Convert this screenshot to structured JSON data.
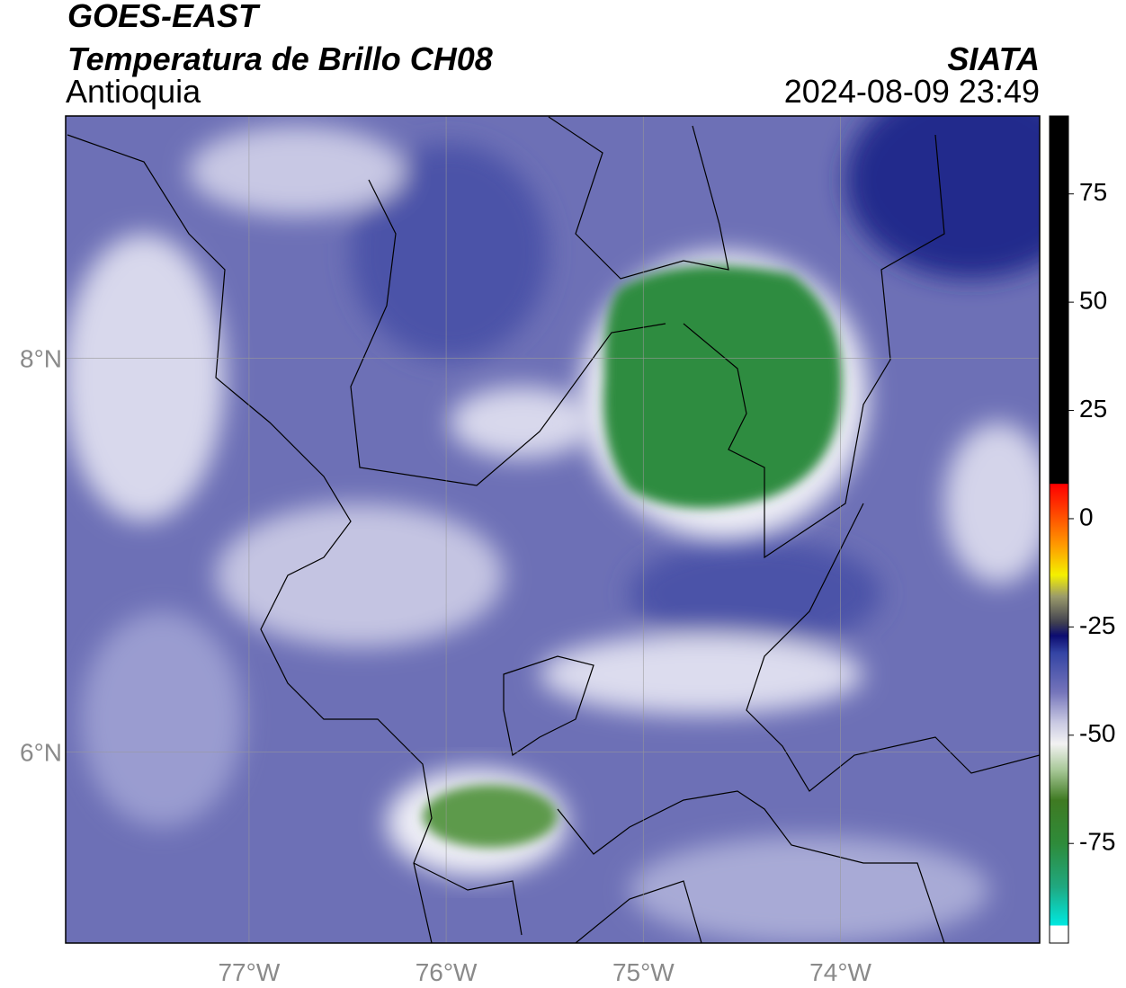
{
  "chart_data": {
    "type": "map",
    "title": "GOES-EAST",
    "subtitle": "Temperatura de Brillo CH08",
    "region": "Antioquia",
    "source": "SIATA",
    "timestamp": "2024-08-09 23:49",
    "xlim": [
      -77.93,
      -72.99
    ],
    "ylim": [
      5.03,
      9.23
    ],
    "xticks": [
      {
        "value": -77,
        "label": "77°W"
      },
      {
        "value": -76,
        "label": "76°W"
      },
      {
        "value": -75,
        "label": "75°W"
      },
      {
        "value": -74,
        "label": "74°W"
      }
    ],
    "yticks": [
      {
        "value": 6,
        "label": "6°N"
      },
      {
        "value": 8,
        "label": "8°N"
      }
    ],
    "grid": true,
    "colorbar": {
      "lim": [
        -98,
        93
      ],
      "ticks": [
        -75,
        -50,
        -25,
        0,
        25,
        50,
        75
      ],
      "stops": [
        {
          "value": -98,
          "color": "#ffffff"
        },
        {
          "value": -94,
          "color": "#ffffff"
        },
        {
          "value": -93.9,
          "color": "#00e8e0"
        },
        {
          "value": -85,
          "color": "#20a880"
        },
        {
          "value": -75,
          "color": "#2e8b3a"
        },
        {
          "value": -65,
          "color": "#3f7a22"
        },
        {
          "value": -58,
          "color": "#a8c898"
        },
        {
          "value": -52,
          "color": "#f2f2f2"
        },
        {
          "value": -47,
          "color": "#c8c8e2"
        },
        {
          "value": -40,
          "color": "#7474ba"
        },
        {
          "value": -31,
          "color": "#3444a4"
        },
        {
          "value": -27,
          "color": "#0c0c70"
        },
        {
          "value": -24,
          "color": "#404050"
        },
        {
          "value": -18,
          "color": "#9a9a6a"
        },
        {
          "value": -13,
          "color": "#f4f000"
        },
        {
          "value": -6,
          "color": "#ff9900"
        },
        {
          "value": 3,
          "color": "#ff3300"
        },
        {
          "value": 8,
          "color": "#ff0000"
        },
        {
          "value": 8.1,
          "color": "#000000"
        },
        {
          "value": 93,
          "color": "#000000"
        }
      ]
    }
  }
}
